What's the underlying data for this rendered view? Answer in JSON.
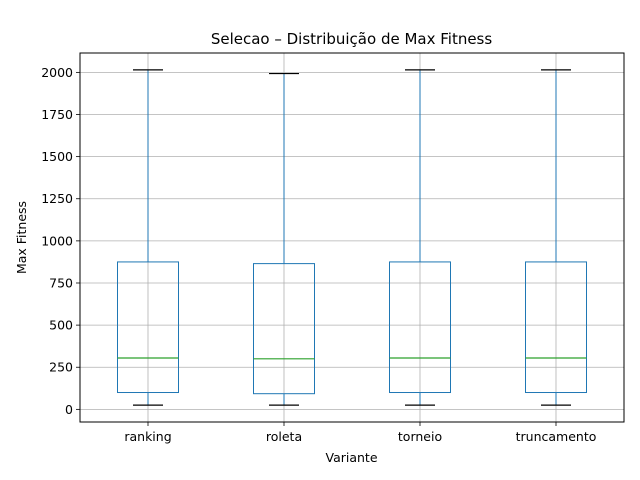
{
  "chart_data": {
    "type": "box",
    "title": "Selecao – Distribuição de Max Fitness",
    "xlabel": "Variante",
    "ylabel": "Max Fitness",
    "ylim": [
      -75,
      2115
    ],
    "yticks": [
      0,
      250,
      500,
      750,
      1000,
      1250,
      1500,
      1750,
      2000
    ],
    "grid": true,
    "colors": {
      "box": "#1f77b4",
      "median": "#2ca02c",
      "whisker_cap": "#000000",
      "grid": "#b0b0b0"
    },
    "categories": [
      "ranking",
      "roleta",
      "torneio",
      "truncamento"
    ],
    "boxes": [
      {
        "label": "ranking",
        "whislo": 25,
        "q1": 100,
        "med": 305,
        "q3": 875,
        "whishi": 2015
      },
      {
        "label": "roleta",
        "whislo": 25,
        "q1": 93,
        "med": 300,
        "q3": 865,
        "whishi": 1993
      },
      {
        "label": "torneio",
        "whislo": 25,
        "q1": 100,
        "med": 305,
        "q3": 875,
        "whishi": 2015
      },
      {
        "label": "truncamento",
        "whislo": 25,
        "q1": 100,
        "med": 305,
        "q3": 875,
        "whishi": 2015
      }
    ]
  }
}
